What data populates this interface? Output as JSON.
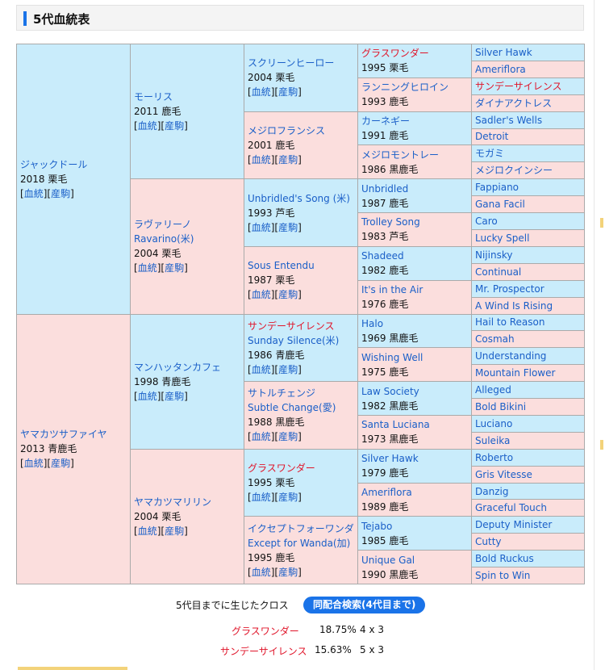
{
  "header": {
    "title": "5代血統表"
  },
  "pedigree": {
    "g1": [
      {
        "name": "ジャックドール",
        "year": "2018",
        "color": "栗毛",
        "link1": "血統",
        "link2": "産駒"
      },
      {
        "name": "ヤマカツサファイヤ",
        "year": "2013",
        "color": "青鹿毛",
        "link1": "血統",
        "link2": "産駒"
      }
    ],
    "g2": [
      {
        "name": "モーリス",
        "year": "2011",
        "color": "鹿毛",
        "link1": "血統",
        "link2": "産駒"
      },
      {
        "name": "ラヴァリーノ",
        "alt": "Ravarino(米)",
        "year": "2004",
        "color": "栗毛",
        "link1": "血統",
        "link2": "産駒"
      },
      {
        "name": "マンハッタンカフェ",
        "year": "1998",
        "color": "青鹿毛",
        "link1": "血統",
        "link2": "産駒"
      },
      {
        "name": "ヤマカツマリリン",
        "year": "2004",
        "color": "栗毛",
        "link1": "血統",
        "link2": "産駒"
      }
    ],
    "g3": [
      {
        "name": "スクリーンヒーロー",
        "year": "2004",
        "color": "栗毛",
        "link1": "血統",
        "link2": "産駒"
      },
      {
        "name": "メジロフランシス",
        "year": "2001",
        "color": "鹿毛",
        "link1": "血統",
        "link2": "産駒"
      },
      {
        "name": "Unbridled's Song (米)",
        "year": "1993",
        "color": "芦毛",
        "link1": "血統",
        "link2": "産駒"
      },
      {
        "name": "Sous Entendu",
        "year": "1987",
        "color": "栗毛",
        "link1": "血統",
        "link2": "産駒"
      },
      {
        "name": "サンデーサイレンス",
        "alt": "Sunday Silence(米)",
        "year": "1986",
        "color": "青鹿毛",
        "link1": "血統",
        "link2": "産駒"
      },
      {
        "name": "サトルチェンジ",
        "alt": "Subtle Change(愛)",
        "year": "1988",
        "color": "黒鹿毛",
        "link1": "血統",
        "link2": "産駒"
      },
      {
        "name": "グラスワンダー",
        "year": "1995",
        "color": "栗毛",
        "link1": "血統",
        "link2": "産駒"
      },
      {
        "name": "イクセプトフォーワンダ",
        "alt": "Except for Wanda(加)",
        "year": "1995",
        "color": "鹿毛",
        "link1": "血統",
        "link2": "産駒"
      }
    ],
    "g4": [
      {
        "name": "グラスワンダー",
        "year": "1995",
        "color": "栗毛"
      },
      {
        "name": "ランニングヒロイン",
        "year": "1993",
        "color": "鹿毛"
      },
      {
        "name": "カーネギー",
        "year": "1991",
        "color": "鹿毛"
      },
      {
        "name": "メジロモントレー",
        "year": "1986",
        "color": "黒鹿毛"
      },
      {
        "name": "Unbridled",
        "year": "1987",
        "color": "鹿毛"
      },
      {
        "name": "Trolley Song",
        "year": "1983",
        "color": "芦毛"
      },
      {
        "name": "Shadeed",
        "year": "1982",
        "color": "鹿毛"
      },
      {
        "name": "It's in the Air",
        "year": "1976",
        "color": "鹿毛"
      },
      {
        "name": "Halo",
        "year": "1969",
        "color": "黒鹿毛"
      },
      {
        "name": "Wishing Well",
        "year": "1975",
        "color": "鹿毛"
      },
      {
        "name": "Law Society",
        "year": "1982",
        "color": "黒鹿毛"
      },
      {
        "name": "Santa Luciana",
        "year": "1973",
        "color": "黒鹿毛"
      },
      {
        "name": "Silver Hawk",
        "year": "1979",
        "color": "鹿毛"
      },
      {
        "name": "Ameriflora",
        "year": "1989",
        "color": "鹿毛"
      },
      {
        "name": "Tejabo",
        "year": "1985",
        "color": "鹿毛"
      },
      {
        "name": "Unique Gal",
        "year": "1990",
        "color": "黒鹿毛"
      }
    ],
    "g5": [
      "Silver Hawk",
      "Ameriflora",
      "サンデーサイレンス",
      "ダイナアクトレス",
      "Sadler's Wells",
      "Detroit",
      "モガミ",
      "メジロクインシー",
      "Fappiano",
      "Gana Facil",
      "Caro",
      "Lucky Spell",
      "Nijinsky",
      "Continual",
      "Mr. Prospector",
      "A Wind Is Rising",
      "Hail to Reason",
      "Cosmah",
      "Understanding",
      "Mountain Flower",
      "Alleged",
      "Bold Bikini",
      "Luciano",
      "Suleika",
      "Roberto",
      "Gris Vitesse",
      "Danzig",
      "Graceful Touch",
      "Deputy Minister",
      "Cutty",
      "Bold Ruckus",
      "Spin to Win"
    ]
  },
  "crosses": {
    "label": "5代目までに生じたクロス",
    "button": "同配合検索(4代目まで)",
    "rows": [
      {
        "name": "グラスワンダー",
        "percent": "18.75%",
        "gens": "4 x 3"
      },
      {
        "name": "サンデーサイレンス",
        "percent": "15.63%",
        "gens": "5 x 3"
      }
    ]
  }
}
